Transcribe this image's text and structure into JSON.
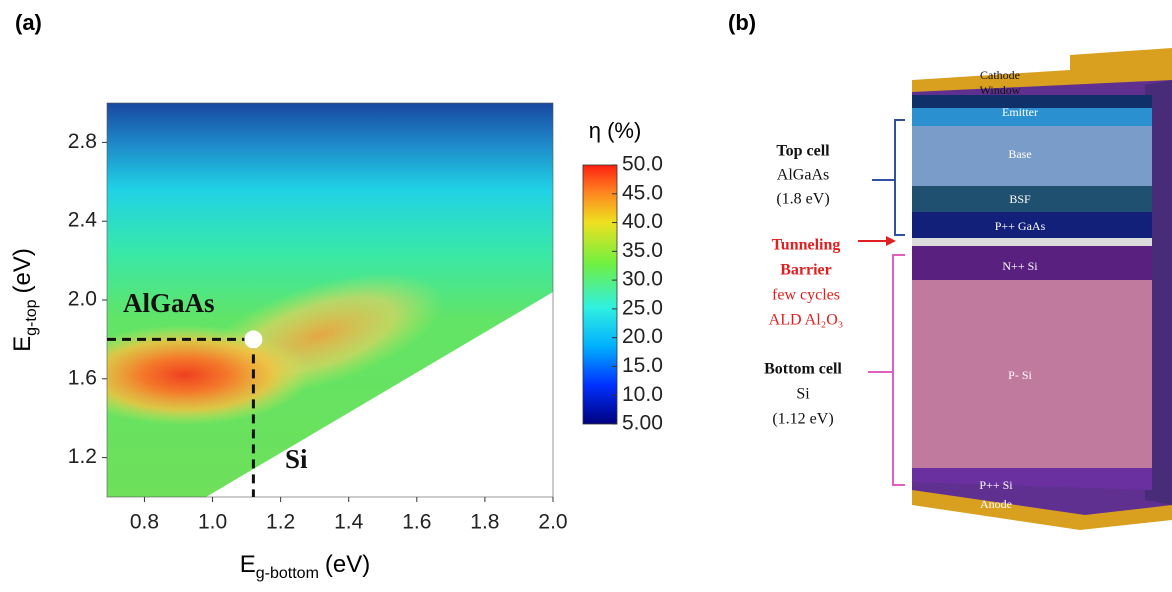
{
  "panel_labels": [
    "(a)",
    "(b)"
  ],
  "chart_data": {
    "type": "heatmap",
    "xlabel": {
      "symbol": "E",
      "subscript": "g-bottom",
      "unit": "(eV)"
    },
    "ylabel": {
      "symbol": "E",
      "subscript": "g-top",
      "unit": "(eV)"
    },
    "xlim": [
      0.69,
      2
    ],
    "xticks": [
      0.8,
      {
        "value": 1,
        "label": "1.0"
      },
      1.2,
      1.4,
      1.6,
      1.8,
      {
        "value": 2,
        "label": "2.0"
      }
    ],
    "ylim": [
      1,
      3
    ],
    "yticks": [
      1.2,
      1.6,
      {
        "value": 2,
        "label": "2.0"
      },
      2.4,
      2.8
    ],
    "colorbar": {
      "label": "η (%)",
      "lim": [
        5,
        50
      ],
      "ticks": [
        {
          "value": 5,
          "label": "5.00"
        },
        {
          "value": 10,
          "label": "10.0"
        },
        {
          "value": 15,
          "label": "15.0"
        },
        {
          "value": 20,
          "label": "20.0"
        },
        {
          "value": 25,
          "label": "25.0"
        },
        {
          "value": 30,
          "label": "30.0"
        },
        {
          "value": 35,
          "label": "35.0"
        },
        {
          "value": 40,
          "label": "40.0"
        },
        {
          "value": 45,
          "label": "45.0"
        },
        {
          "value": 50,
          "label": "50.0"
        }
      ]
    },
    "marker": {
      "x": 1.12,
      "y": 1.8
    },
    "annotations": [
      "AlGaAs",
      "Si"
    ]
  },
  "diagram": {
    "layers": [
      "Cathode",
      "Window",
      "Emitter",
      "Base",
      "BSF",
      "P++ GaAs",
      "N++ Si",
      "P- Si",
      "P++  Si",
      "Anode"
    ],
    "top_cell": [
      "Top cell",
      "AlGaAs",
      "(1.8 eV)"
    ],
    "barrier": [
      "Tunneling",
      "Barrier",
      "few cycles",
      "ALD Al₂O₃"
    ],
    "bottom_cell": [
      "Bottom cell",
      "Si",
      "(1.12 eV)"
    ]
  }
}
